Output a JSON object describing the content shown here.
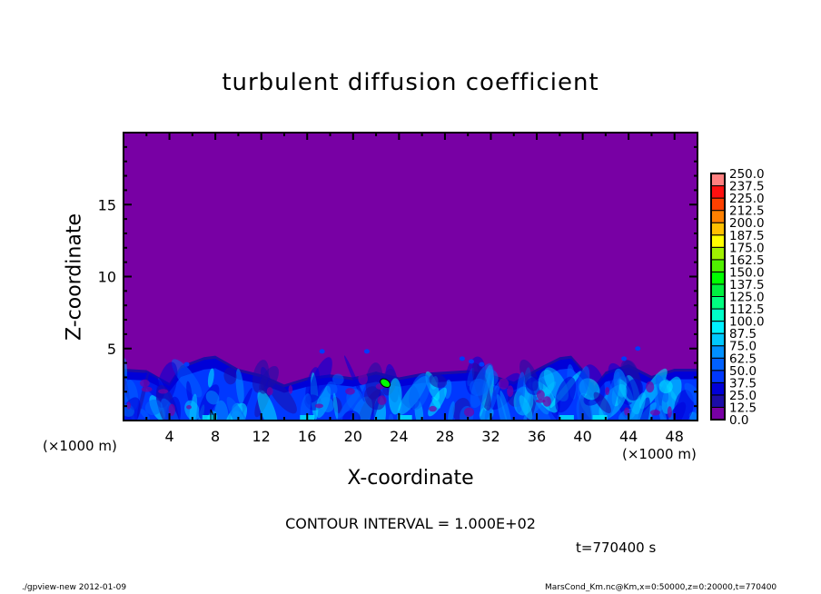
{
  "chart_data": {
    "type": "heatmap",
    "title": "turbulent diffusion coefficient",
    "xlabel": "X-coordinate",
    "ylabel": "Z-coordinate",
    "x_unit": "(×1000 m)",
    "xlim": [
      0,
      50
    ],
    "ylim": [
      0,
      20
    ],
    "x_ticks": [
      "4",
      "8",
      "12",
      "16",
      "20",
      "24",
      "28",
      "32",
      "36",
      "40",
      "44",
      "48"
    ],
    "y_ticks": [
      "5",
      "10",
      "15"
    ],
    "grid": false,
    "colorbar": {
      "levels": [
        "0.0",
        "12.5",
        "25.0",
        "37.5",
        "50.0",
        "62.5",
        "75.0",
        "87.5",
        "100.0",
        "112.5",
        "125.0",
        "137.5",
        "150.0",
        "162.5",
        "175.0",
        "187.5",
        "200.0",
        "212.5",
        "225.0",
        "237.5",
        "250.0"
      ],
      "colors": [
        "#7800a4",
        "#1c0ca8",
        "#0000d8",
        "#0038ff",
        "#0060ff",
        "#0090ff",
        "#00c8ff",
        "#00f0ff",
        "#00ffc8",
        "#00ff80",
        "#00f040",
        "#00ff00",
        "#50f000",
        "#a0f000",
        "#ffff00",
        "#ffc000",
        "#ff8000",
        "#ff4000",
        "#ff1010",
        "#ff8080"
      ],
      "placement": "right"
    },
    "background_value_range": [
      0,
      12.5
    ],
    "turbulent_layer_top": {
      "x": [
        0,
        2,
        4,
        5,
        7,
        8,
        10,
        12,
        14,
        16,
        18,
        20,
        22,
        24,
        26,
        28,
        30,
        32,
        34,
        36,
        38,
        39,
        40,
        41,
        42,
        44,
        46,
        48,
        50
      ],
      "z": [
        3.6,
        3.5,
        2.6,
        3.8,
        4.4,
        4.5,
        3.6,
        3.2,
        2.5,
        3.0,
        3.2,
        3.0,
        3.4,
        3.0,
        3.3,
        3.4,
        3.5,
        3.2,
        2.7,
        3.6,
        4.4,
        4.5,
        3.6,
        2.4,
        3.4,
        3.9,
        3.1,
        3.6,
        3.6
      ]
    },
    "max_region": {
      "x": 22.8,
      "z": 2.6,
      "value_range": [
        100,
        112.5
      ]
    }
  },
  "annotations": {
    "contour_interval": "CONTOUR INTERVAL = 1.000E+02",
    "time": "t=770400 s"
  },
  "footer": {
    "left": "./gpview-new   2012-01-09",
    "right": "MarsCond_Km.nc@Km,x=0:50000,z=0:20000,t=770400"
  }
}
